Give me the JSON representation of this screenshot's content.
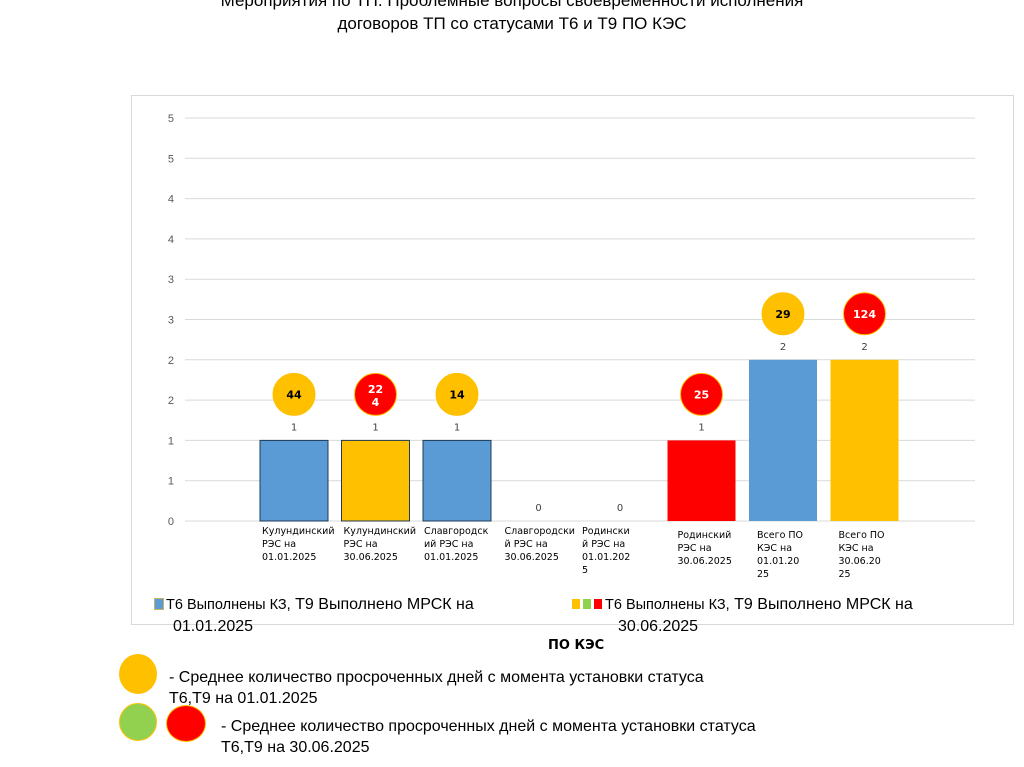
{
  "title": {
    "line1": "Мероприятия по ТП. Проблемные вопросы своевременности исполнения",
    "line2": "договоров ТП со статусами Т6 и Т9 ПО КЭС"
  },
  "colors": {
    "blue": "#5b9bd5",
    "orange": "#ffc000",
    "red": "#ff0000",
    "green": "#92d050",
    "grid": "#d9d9d9"
  },
  "chart_data": {
    "type": "bar",
    "title": "Мероприятия по ТП. Проблемные вопросы своевременности исполнения договоров ТП со статусами Т6 и Т9 ПО КЭС",
    "xlabel": "",
    "ylabel": "",
    "ylim": [
      0,
      5
    ],
    "grid": true,
    "ytick_values": [
      0,
      0.5,
      1,
      1.5,
      2,
      2.5,
      3,
      3.5,
      4,
      4.5,
      5
    ],
    "ytick_labels": [
      "0",
      "1",
      "1",
      "2",
      "2",
      "3",
      "3",
      "4",
      "4",
      "5",
      "5"
    ],
    "categories": [
      "Кулундинский РЭС на 01.01.2025",
      "Кулундинский РЭС на 30.06.2025",
      "Славгородский РЭС на 01.01.2025",
      "Славгородский РЭС на 30.06.2025",
      "Родинский РЭС на 01.01.2025",
      "Родинский РЭС на 30.06.2025",
      "Всего ПО КЭС на 01.01.2025",
      "Всего ПО КЭС на 30.06.2025"
    ],
    "category_label_lines": [
      [
        "Кулундинский",
        "РЭС на",
        "01.01.2025"
      ],
      [
        "Кулундинский",
        "РЭС на",
        "30.06.2025"
      ],
      [
        "Славгородск",
        "ий РЭС на",
        "01.01.2025"
      ],
      [
        "Славгородски",
        "й  РЭС на",
        "30.06.2025"
      ],
      [
        "Родински",
        "й РЭС на",
        "01.01.202",
        "5"
      ],
      [
        "Родинский",
        "РЭС на",
        "30.06.2025"
      ],
      [
        "Всего ПО",
        "КЭС на",
        "01.01.20",
        "25"
      ],
      [
        "Всего ПО",
        "КЭС на",
        "30.06.20",
        "25"
      ]
    ],
    "values": [
      1,
      1,
      1,
      0,
      0,
      1,
      2,
      2
    ],
    "data_labels": [
      "1",
      "1",
      "1",
      "0",
      "0",
      "1",
      "2",
      "2"
    ],
    "bar_colors": [
      "blue",
      "orange",
      "blue",
      "blue",
      "blue",
      "red",
      "blue",
      "orange"
    ],
    "bar_outlined": [
      true,
      true,
      true,
      false,
      false,
      false,
      false,
      false
    ],
    "bubbles": [
      {
        "index": 0,
        "label_lines": [
          "44"
        ],
        "color": "orange"
      },
      {
        "index": 1,
        "label_lines": [
          "22",
          "4"
        ],
        "color": "red"
      },
      {
        "index": 2,
        "label_lines": [
          "14"
        ],
        "color": "orange"
      },
      {
        "index": 5,
        "label_lines": [
          "25"
        ],
        "color": "red"
      },
      {
        "index": 6,
        "label_lines": [
          "29"
        ],
        "color": "orange"
      },
      {
        "index": 7,
        "label_lines": [
          "124"
        ],
        "color": "red"
      }
    ],
    "legend": [
      {
        "small": "Т6 Выполнены КЗ,",
        "big": " Т9 Выполнено МРСК на",
        "line2": "01.01.2025",
        "swatches": [
          "blue"
        ]
      },
      {
        "small": "Т6 Выполнены КЗ,",
        "big": " Т9 Выполнено МРСК на",
        "line2": "30.06.2025",
        "swatches": [
          "orange",
          "green",
          "red"
        ]
      }
    ],
    "legend_position": "bottom"
  },
  "notes": {
    "heading": "ПО КЭС",
    "note1_line1": "- Среднее количество просроченных дней с момента установки статуса",
    "note1_line2": "Т6,Т9 на 01.01.2025",
    "note2_line1": "- Среднее количество просроченных дней с момента установки статуса",
    "note2_line2": "Т6,Т9 на 30.06.2025"
  }
}
